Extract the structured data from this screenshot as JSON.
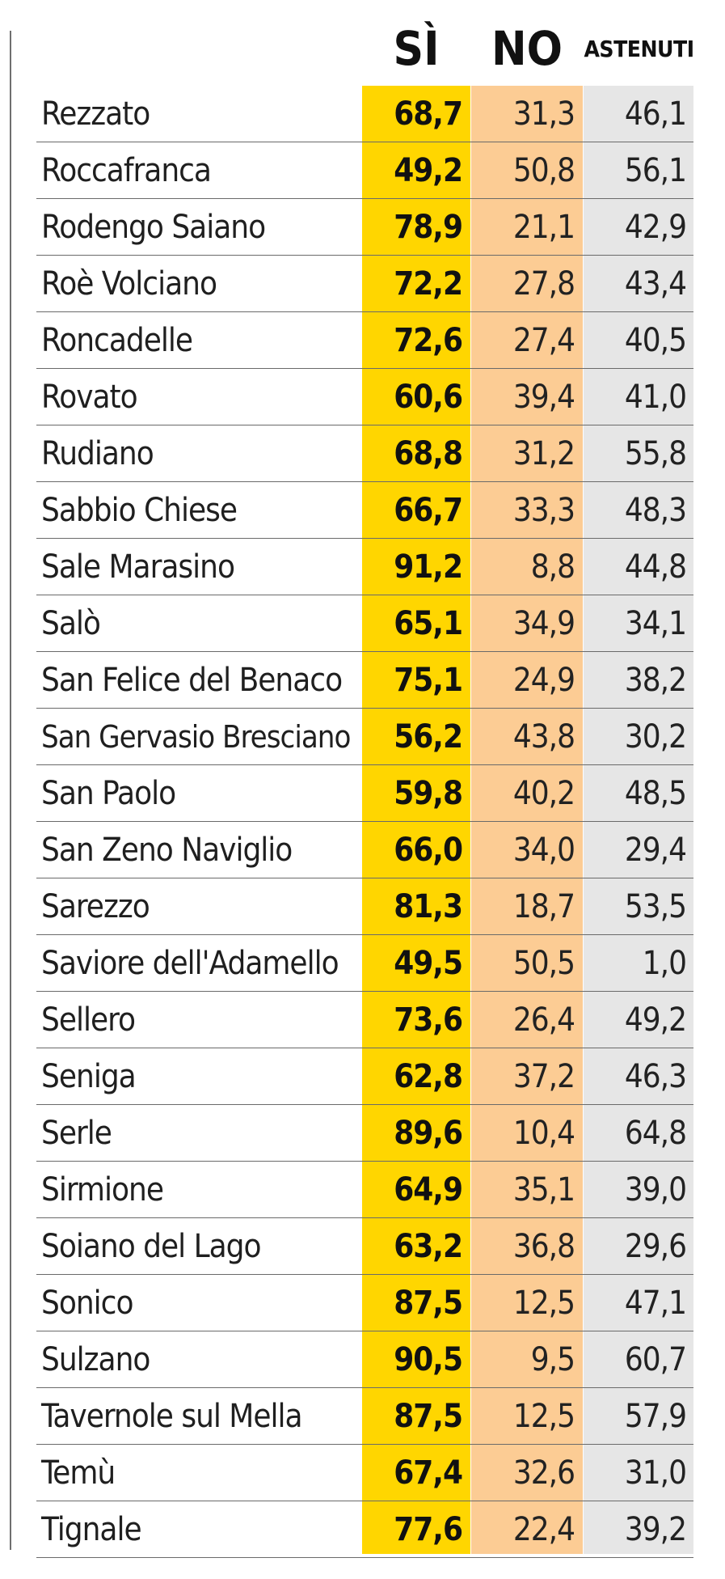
{
  "headers": {
    "si": "SÌ",
    "no": "NO",
    "astenuti": "ASTENUTI"
  },
  "colors": {
    "si_column": "#ffd600",
    "no_column": "#fccc94",
    "astenuti_column": "#e6e6e6",
    "row_divider": "#6a6a6a"
  },
  "rows": [
    {
      "comune": "Rezzato",
      "si": "68,7",
      "no": "31,3",
      "astenuti": "46,1"
    },
    {
      "comune": "Roccafranca",
      "si": "49,2",
      "no": "50,8",
      "astenuti": "56,1"
    },
    {
      "comune": "Rodengo Saiano",
      "si": "78,9",
      "no": "21,1",
      "astenuti": "42,9"
    },
    {
      "comune": "Roè Volciano",
      "si": "72,2",
      "no": "27,8",
      "astenuti": "43,4"
    },
    {
      "comune": "Roncadelle",
      "si": "72,6",
      "no": "27,4",
      "astenuti": "40,5"
    },
    {
      "comune": "Rovato",
      "si": "60,6",
      "no": "39,4",
      "astenuti": "41,0"
    },
    {
      "comune": "Rudiano",
      "si": "68,8",
      "no": "31,2",
      "astenuti": "55,8"
    },
    {
      "comune": "Sabbio Chiese",
      "si": "66,7",
      "no": "33,3",
      "astenuti": "48,3"
    },
    {
      "comune": "Sale Marasino",
      "si": "91,2",
      "no": "8,8",
      "astenuti": "44,8"
    },
    {
      "comune": "Salò",
      "si": "65,1",
      "no": "34,9",
      "astenuti": "34,1"
    },
    {
      "comune": "San Felice del Benaco",
      "si": "75,1",
      "no": "24,9",
      "astenuti": "38,2"
    },
    {
      "comune": "San Gervasio Bresciano",
      "si": "56,2",
      "no": "43,8",
      "astenuti": "30,2"
    },
    {
      "comune": "San Paolo",
      "si": "59,8",
      "no": "40,2",
      "astenuti": "48,5"
    },
    {
      "comune": "San Zeno Naviglio",
      "si": "66,0",
      "no": "34,0",
      "astenuti": "29,4"
    },
    {
      "comune": "Sarezzo",
      "si": "81,3",
      "no": "18,7",
      "astenuti": "53,5"
    },
    {
      "comune": "Saviore dell'Adamello",
      "si": "49,5",
      "no": "50,5",
      "astenuti": "1,0"
    },
    {
      "comune": "Sellero",
      "si": "73,6",
      "no": "26,4",
      "astenuti": "49,2"
    },
    {
      "comune": "Seniga",
      "si": "62,8",
      "no": "37,2",
      "astenuti": "46,3"
    },
    {
      "comune": "Serle",
      "si": "89,6",
      "no": "10,4",
      "astenuti": "64,8"
    },
    {
      "comune": "Sirmione",
      "si": "64,9",
      "no": "35,1",
      "astenuti": "39,0"
    },
    {
      "comune": "Soiano del Lago",
      "si": "63,2",
      "no": "36,8",
      "astenuti": "29,6"
    },
    {
      "comune": "Sonico",
      "si": "87,5",
      "no": "12,5",
      "astenuti": "47,1"
    },
    {
      "comune": "Sulzano",
      "si": "90,5",
      "no": "9,5",
      "astenuti": "60,7"
    },
    {
      "comune": "Tavernole sul Mella",
      "si": "87,5",
      "no": "12,5",
      "astenuti": "57,9"
    },
    {
      "comune": "Temù",
      "si": "67,4",
      "no": "32,6",
      "astenuti": "31,0"
    },
    {
      "comune": "Tignale",
      "si": "77,6",
      "no": "22,4",
      "astenuti": "39,2"
    }
  ]
}
